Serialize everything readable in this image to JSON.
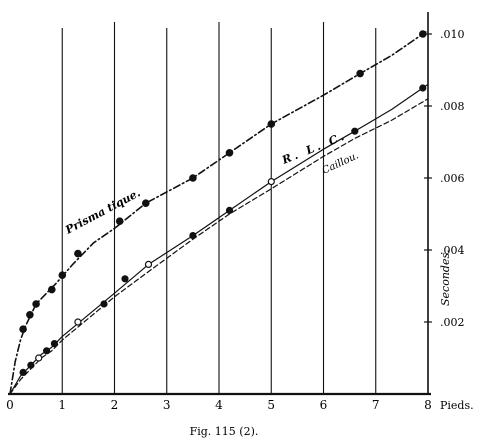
{
  "chart_data": {
    "type": "line",
    "caption": "Fig. 115 (2).",
    "xlabel": "Pieds.",
    "ylabel": "Secondes.",
    "xlim": [
      0,
      8
    ],
    "ylim": [
      0,
      0.01
    ],
    "xticks": [
      "0",
      "1",
      "2",
      "3",
      "4",
      "5",
      "6",
      "7",
      "8"
    ],
    "yticks": [
      ".002",
      ".004",
      ".006",
      ".008",
      ".010"
    ],
    "ytick_values": [
      0.002,
      0.004,
      0.006,
      0.008,
      0.01
    ],
    "grid": "vertical lines at x = 1 through 8",
    "series": [
      {
        "name": "Prisma tique.",
        "style": "dash-dot",
        "markers": [
          [
            0.25,
            0.0018
          ],
          [
            0.38,
            0.0022
          ],
          [
            0.5,
            0.0025
          ],
          [
            0.8,
            0.0029
          ],
          [
            1.0,
            0.0033
          ],
          [
            1.3,
            0.0039
          ],
          [
            2.1,
            0.0048
          ],
          [
            2.6,
            0.0053
          ],
          [
            3.5,
            0.006
          ],
          [
            4.2,
            0.0067
          ],
          [
            5.0,
            0.0075
          ],
          [
            6.7,
            0.0089
          ],
          [
            7.9,
            0.01
          ]
        ],
        "curve": [
          [
            0,
            0
          ],
          [
            0.1,
            0.0009
          ],
          [
            0.2,
            0.0015
          ],
          [
            0.3,
            0.0019
          ],
          [
            0.4,
            0.0022
          ],
          [
            0.5,
            0.0025
          ],
          [
            0.7,
            0.0028
          ],
          [
            0.9,
            0.0031
          ],
          [
            1.2,
            0.0036
          ],
          [
            1.6,
            0.0042
          ],
          [
            2.0,
            0.0046
          ],
          [
            2.6,
            0.0053
          ],
          [
            3.5,
            0.006
          ],
          [
            4.2,
            0.0067
          ],
          [
            5.0,
            0.0075
          ],
          [
            6.0,
            0.0083
          ],
          [
            6.7,
            0.0089
          ],
          [
            7.3,
            0.0094
          ],
          [
            8.0,
            0.0101
          ]
        ]
      },
      {
        "name": "R. L. C.",
        "style": "solid",
        "markers": [
          [
            0.25,
            0.0006
          ],
          [
            0.4,
            0.0008
          ],
          [
            0.55,
            0.001
          ],
          [
            0.7,
            0.0012
          ],
          [
            0.85,
            0.0014
          ],
          [
            1.3,
            0.002
          ],
          [
            1.8,
            0.0025
          ],
          [
            2.2,
            0.0032
          ],
          [
            2.65,
            0.0036
          ],
          [
            3.5,
            0.0044
          ],
          [
            4.2,
            0.0051
          ],
          [
            5.0,
            0.0059
          ],
          [
            6.6,
            0.0073
          ],
          [
            7.9,
            0.0085
          ]
        ],
        "curve": [
          [
            0,
            0
          ],
          [
            0.2,
            0.0005
          ],
          [
            0.4,
            0.0008
          ],
          [
            0.6,
            0.0011
          ],
          [
            0.8,
            0.0013
          ],
          [
            1.0,
            0.0016
          ],
          [
            1.5,
            0.0022
          ],
          [
            2.0,
            0.0028
          ],
          [
            2.65,
            0.0036
          ],
          [
            3.5,
            0.0044
          ],
          [
            4.2,
            0.0051
          ],
          [
            5.0,
            0.0059
          ],
          [
            6.0,
            0.0068
          ],
          [
            6.6,
            0.0073
          ],
          [
            7.3,
            0.0079
          ],
          [
            8.0,
            0.0086
          ]
        ]
      },
      {
        "name": "Caillou.",
        "style": "dashed",
        "markers": [],
        "curve": [
          [
            0,
            0
          ],
          [
            0.2,
            0.0004
          ],
          [
            0.4,
            0.0007
          ],
          [
            0.6,
            0.001
          ],
          [
            0.8,
            0.0012
          ],
          [
            1.0,
            0.0015
          ],
          [
            1.5,
            0.0021
          ],
          [
            2.0,
            0.0027
          ],
          [
            2.65,
            0.0034
          ],
          [
            3.5,
            0.0043
          ],
          [
            4.2,
            0.005
          ],
          [
            5.0,
            0.0057
          ],
          [
            6.0,
            0.0066
          ],
          [
            6.6,
            0.0071
          ],
          [
            7.3,
            0.0076
          ],
          [
            8.0,
            0.0082
          ]
        ]
      }
    ],
    "annotations": [
      "R. L. C.",
      "Caillou.",
      "Prisma tique."
    ]
  }
}
